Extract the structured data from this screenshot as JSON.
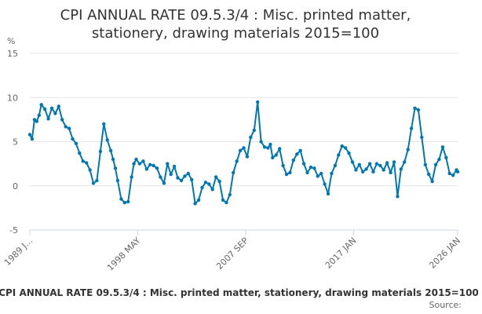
{
  "chart_data": {
    "type": "line",
    "title_line1": "CPI ANNUAL RATE 09.5.3/4 : Misc. printed matter,",
    "title_line2": "stationery, drawing materials 2015=100",
    "ylabel": "%",
    "ylim": [
      -5,
      15
    ],
    "yticks": [
      "15",
      "10",
      "5",
      "0",
      "-5"
    ],
    "ytick_values": [
      15,
      10,
      5,
      0,
      -5
    ],
    "xlim": [
      1989.0,
      2026.0
    ],
    "xtick_labels": [
      "1989 J...",
      "1998 MAY",
      "2007 SEP",
      "2017 JAN",
      "2026 JAN"
    ],
    "xtick_values": [
      1989.0,
      1998.33,
      2007.67,
      2017.0,
      2026.0
    ],
    "grid": true,
    "legend": "none",
    "series": [
      {
        "name": "CPI ANNUAL RATE 09.5.3/4",
        "color": "#0077b3",
        "x": [
          1989.0,
          1989.2,
          1989.4,
          1989.6,
          1989.8,
          1990.0,
          1990.3,
          1990.6,
          1990.9,
          1991.2,
          1991.5,
          1991.8,
          1992.1,
          1992.4,
          1992.7,
          1993.0,
          1993.3,
          1993.6,
          1993.9,
          1994.2,
          1994.5,
          1994.8,
          1995.1,
          1995.4,
          1995.7,
          1996.0,
          1996.2,
          1996.4,
          1996.6,
          1996.9,
          1997.2,
          1997.5,
          1997.8,
          1998.0,
          1998.2,
          1998.5,
          1998.8,
          1999.1,
          1999.4,
          1999.7,
          2000.0,
          2000.3,
          2000.6,
          2000.9,
          2001.2,
          2001.5,
          2001.8,
          2002.1,
          2002.4,
          2002.7,
          2003.0,
          2003.3,
          2003.6,
          2003.9,
          2004.2,
          2004.5,
          2004.8,
          2005.1,
          2005.4,
          2005.7,
          2006.0,
          2006.3,
          2006.6,
          2006.9,
          2007.2,
          2007.5,
          2007.8,
          2008.1,
          2008.4,
          2008.7,
          2009.0,
          2009.3,
          2009.6,
          2009.8,
          2010.0,
          2010.3,
          2010.6,
          2010.9,
          2011.2,
          2011.5,
          2011.8,
          2012.1,
          2012.4,
          2012.7,
          2013.0,
          2013.3,
          2013.6,
          2013.9,
          2014.2,
          2014.5,
          2014.8,
          2015.1,
          2015.4,
          2015.7,
          2016.0,
          2016.3,
          2016.6,
          2016.9,
          2017.2,
          2017.5,
          2017.8,
          2018.1,
          2018.4,
          2018.7,
          2019.0,
          2019.3,
          2019.6,
          2019.9,
          2020.2,
          2020.5,
          2020.8,
          2021.1,
          2021.4,
          2021.7,
          2022.0,
          2022.3,
          2022.6,
          2022.9,
          2023.2,
          2023.5,
          2023.8,
          2024.1,
          2024.4,
          2024.7,
          2025.0,
          2025.3,
          2025.6,
          2025.9,
          2026.0
        ],
        "values": [
          5.8,
          5.3,
          7.5,
          7.3,
          8.0,
          9.2,
          8.7,
          7.6,
          8.8,
          8.2,
          9.0,
          7.5,
          6.7,
          6.5,
          5.3,
          4.8,
          3.7,
          2.8,
          2.6,
          1.8,
          0.3,
          0.6,
          3.9,
          7.0,
          5.2,
          4.0,
          3.0,
          2.0,
          0.6,
          -1.5,
          -1.9,
          -1.8,
          1.0,
          2.5,
          3.0,
          2.5,
          2.8,
          1.9,
          2.4,
          2.3,
          2.0,
          1.0,
          0.3,
          2.5,
          1.3,
          2.2,
          0.9,
          0.6,
          1.1,
          1.4,
          0.7,
          -2.0,
          -1.6,
          -0.2,
          0.4,
          0.2,
          -0.4,
          1.0,
          0.5,
          -1.6,
          -1.9,
          -1.0,
          1.5,
          2.8,
          4.0,
          4.3,
          3.3,
          5.5,
          6.3,
          9.5,
          5.0,
          4.4,
          4.3,
          4.7,
          3.2,
          3.5,
          4.2,
          2.3,
          1.3,
          1.5,
          2.9,
          3.6,
          4.0,
          2.5,
          1.5,
          2.1,
          2.0,
          1.1,
          1.4,
          0.2,
          -0.9,
          1.4,
          2.3,
          3.5,
          4.5,
          4.3,
          3.7,
          2.7,
          1.8,
          2.4,
          1.6,
          1.9,
          2.5,
          1.6,
          2.5,
          2.3,
          1.8,
          2.6,
          1.5,
          2.7,
          -1.2,
          1.9,
          2.7,
          4.1,
          6.5,
          8.8,
          8.6,
          5.5,
          2.4,
          1.3,
          0.5,
          2.4,
          3.0,
          4.4,
          3.2,
          1.4,
          1.2,
          1.8,
          1.6
        ]
      }
    ],
    "footer_title": "CPI ANNUAL RATE 09.5.3/4 : Misc. printed matter, stationery, drawing materials 2015=100",
    "source_label": "Source: "
  }
}
